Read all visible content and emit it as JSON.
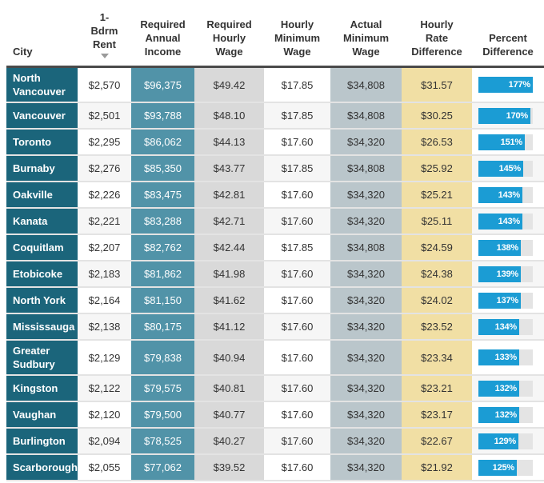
{
  "colors": {
    "dark_teal": "#1b657b",
    "teal": "#5193a8",
    "light_gray_col": "#d9d9d9",
    "blue_gray_col": "#bac6cb",
    "yellow_col": "#f1dfa4",
    "bar_blue": "#1b9cd4",
    "track_gray": "#e4e4e4",
    "stripe": "#f6f6f6",
    "rule_dark": "#4a4a4a",
    "text_dark": "#333333",
    "sort_arrow": "#9a9a9a"
  },
  "chart_data": {
    "type": "table",
    "title": "",
    "legend_position": "none",
    "bar_column": "percent_difference",
    "bar_axis_max": 177,
    "sort": {
      "column": "1-Bdrm Rent",
      "direction": "descending"
    },
    "columns": [
      {
        "id": "city",
        "label": "City"
      },
      {
        "id": "rent",
        "label": "1-\nBdrm\nRent",
        "sort_indicator": "descending"
      },
      {
        "id": "income",
        "label": "Required\nAnnual\nIncome"
      },
      {
        "id": "req_hourly",
        "label": "Required\nHourly\nWage"
      },
      {
        "id": "hourly_min",
        "label": "Hourly\nMinimum\nWage"
      },
      {
        "id": "actual_min",
        "label": "Actual\nMinimum\nWage"
      },
      {
        "id": "rate_diff",
        "label": "Hourly\nRate\nDifference"
      },
      {
        "id": "pct",
        "label": "Percent\nDifference"
      }
    ],
    "rows": [
      {
        "city": "North Vancouver",
        "rent": "$2,570",
        "income": "$96,375",
        "req_hourly": "$49.42",
        "hourly_min": "$17.85",
        "actual_min": "$34,808",
        "rate_diff": "$31.57",
        "pct": 177,
        "pct_label": "177%"
      },
      {
        "city": "Vancouver",
        "rent": "$2,501",
        "income": "$93,788",
        "req_hourly": "$48.10",
        "hourly_min": "$17.85",
        "actual_min": "$34,808",
        "rate_diff": "$30.25",
        "pct": 170,
        "pct_label": "170%"
      },
      {
        "city": "Toronto",
        "rent": "$2,295",
        "income": "$86,062",
        "req_hourly": "$44.13",
        "hourly_min": "$17.60",
        "actual_min": "$34,320",
        "rate_diff": "$26.53",
        "pct": 151,
        "pct_label": "151%"
      },
      {
        "city": "Burnaby",
        "rent": "$2,276",
        "income": "$85,350",
        "req_hourly": "$43.77",
        "hourly_min": "$17.85",
        "actual_min": "$34,808",
        "rate_diff": "$25.92",
        "pct": 145,
        "pct_label": "145%"
      },
      {
        "city": "Oakville",
        "rent": "$2,226",
        "income": "$83,475",
        "req_hourly": "$42.81",
        "hourly_min": "$17.60",
        "actual_min": "$34,320",
        "rate_diff": "$25.21",
        "pct": 143,
        "pct_label": "143%"
      },
      {
        "city": "Kanata",
        "rent": "$2,221",
        "income": "$83,288",
        "req_hourly": "$42.71",
        "hourly_min": "$17.60",
        "actual_min": "$34,320",
        "rate_diff": "$25.11",
        "pct": 143,
        "pct_label": "143%"
      },
      {
        "city": "Coquitlam",
        "rent": "$2,207",
        "income": "$82,762",
        "req_hourly": "$42.44",
        "hourly_min": "$17.85",
        "actual_min": "$34,808",
        "rate_diff": "$24.59",
        "pct": 138,
        "pct_label": "138%"
      },
      {
        "city": "Etobicoke",
        "rent": "$2,183",
        "income": "$81,862",
        "req_hourly": "$41.98",
        "hourly_min": "$17.60",
        "actual_min": "$34,320",
        "rate_diff": "$24.38",
        "pct": 139,
        "pct_label": "139%"
      },
      {
        "city": "North York",
        "rent": "$2,164",
        "income": "$81,150",
        "req_hourly": "$41.62",
        "hourly_min": "$17.60",
        "actual_min": "$34,320",
        "rate_diff": "$24.02",
        "pct": 137,
        "pct_label": "137%"
      },
      {
        "city": "Mississauga",
        "rent": "$2,138",
        "income": "$80,175",
        "req_hourly": "$41.12",
        "hourly_min": "$17.60",
        "actual_min": "$34,320",
        "rate_diff": "$23.52",
        "pct": 134,
        "pct_label": "134%"
      },
      {
        "city": "Greater Sudbury",
        "rent": "$2,129",
        "income": "$79,838",
        "req_hourly": "$40.94",
        "hourly_min": "$17.60",
        "actual_min": "$34,320",
        "rate_diff": "$23.34",
        "pct": 133,
        "pct_label": "133%"
      },
      {
        "city": "Kingston",
        "rent": "$2,122",
        "income": "$79,575",
        "req_hourly": "$40.81",
        "hourly_min": "$17.60",
        "actual_min": "$34,320",
        "rate_diff": "$23.21",
        "pct": 132,
        "pct_label": "132%"
      },
      {
        "city": "Vaughan",
        "rent": "$2,120",
        "income": "$79,500",
        "req_hourly": "$40.77",
        "hourly_min": "$17.60",
        "actual_min": "$34,320",
        "rate_diff": "$23.17",
        "pct": 132,
        "pct_label": "132%"
      },
      {
        "city": "Burlington",
        "rent": "$2,094",
        "income": "$78,525",
        "req_hourly": "$40.27",
        "hourly_min": "$17.60",
        "actual_min": "$34,320",
        "rate_diff": "$22.67",
        "pct": 129,
        "pct_label": "129%"
      },
      {
        "city": "Scarborough",
        "rent": "$2,055",
        "income": "$77,062",
        "req_hourly": "$39.52",
        "hourly_min": "$17.60",
        "actual_min": "$34,320",
        "rate_diff": "$21.92",
        "pct": 125,
        "pct_label": "125%"
      }
    ]
  }
}
